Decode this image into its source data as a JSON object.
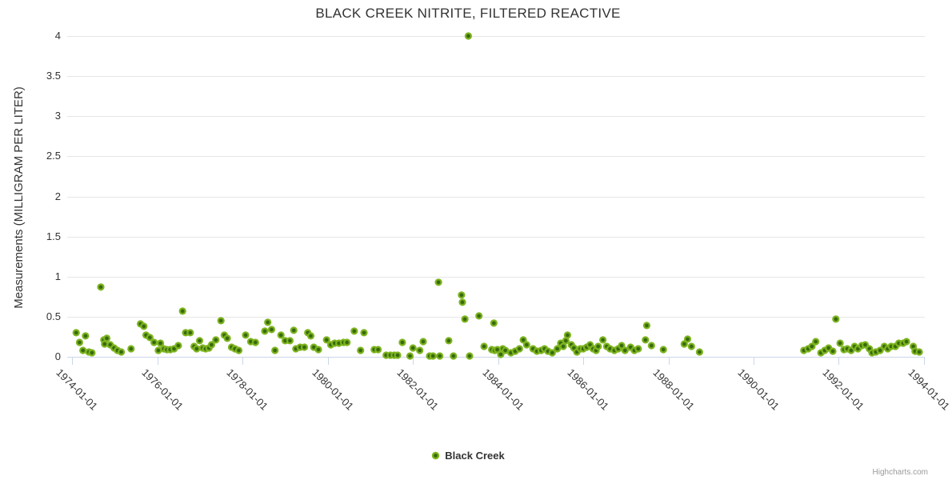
{
  "title": "BLACK CREEK NITRITE, FILTERED REACTIVE",
  "credits": "Highcharts.com",
  "legend": {
    "items": [
      {
        "label": "Black Creek"
      }
    ]
  },
  "colors": {
    "marker_outer": "#7db41e",
    "marker_center": "#37690f",
    "grid": "#e6e6e6",
    "axis_line": "#ccd6eb",
    "label": "#333333",
    "credits": "#999999"
  },
  "chart_data": {
    "type": "scatter",
    "title": "BLACK CREEK NITRITE, FILTERED REACTIVE",
    "xlabel": "",
    "ylabel": "Measurements (MILLIGRAM PER LITER)",
    "legend_position": "bottom-center",
    "grid": "horizontal",
    "xlim": [
      1973.88,
      1994.02
    ],
    "ylim": [
      0,
      4
    ],
    "y_ticks": [
      0,
      0.5,
      1,
      1.5,
      2,
      2.5,
      3,
      3.5,
      4
    ],
    "x_tick_years": [
      1974,
      1976,
      1978,
      1980,
      1982,
      1984,
      1986,
      1988,
      1990,
      1992,
      1994
    ],
    "x_tick_labels": [
      "1974-01-01",
      "1976-01-01",
      "1978-01-01",
      "1980-01-01",
      "1982-01-01",
      "1984-01-01",
      "1986-01-01",
      "1988-01-01",
      "1990-01-01",
      "1992-01-01",
      "1994-01-01"
    ],
    "series": [
      {
        "name": "Black Creek",
        "points": [
          [
            1974.09,
            0.3
          ],
          [
            1974.17,
            0.18
          ],
          [
            1974.25,
            0.08
          ],
          [
            1974.31,
            0.26
          ],
          [
            1974.39,
            0.06
          ],
          [
            1974.46,
            0.05
          ],
          [
            1974.67,
            0.87
          ],
          [
            1974.74,
            0.21
          ],
          [
            1974.76,
            0.16
          ],
          [
            1974.81,
            0.23
          ],
          [
            1974.89,
            0.15
          ],
          [
            1974.98,
            0.11
          ],
          [
            1975.06,
            0.08
          ],
          [
            1975.15,
            0.06
          ],
          [
            1975.38,
            0.1
          ],
          [
            1975.6,
            0.41
          ],
          [
            1975.68,
            0.38
          ],
          [
            1975.73,
            0.27
          ],
          [
            1975.82,
            0.24
          ],
          [
            1975.92,
            0.18
          ],
          [
            1976.02,
            0.08
          ],
          [
            1976.07,
            0.17
          ],
          [
            1976.15,
            0.1
          ],
          [
            1976.22,
            0.09
          ],
          [
            1976.3,
            0.09
          ],
          [
            1976.39,
            0.1
          ],
          [
            1976.49,
            0.14
          ],
          [
            1976.59,
            0.57
          ],
          [
            1976.66,
            0.3
          ],
          [
            1976.77,
            0.3
          ],
          [
            1976.86,
            0.13
          ],
          [
            1976.92,
            0.1
          ],
          [
            1976.99,
            0.2
          ],
          [
            1977.06,
            0.11
          ],
          [
            1977.13,
            0.1
          ],
          [
            1977.21,
            0.11
          ],
          [
            1977.27,
            0.15
          ],
          [
            1977.37,
            0.21
          ],
          [
            1977.49,
            0.45
          ],
          [
            1977.57,
            0.27
          ],
          [
            1977.64,
            0.23
          ],
          [
            1977.74,
            0.12
          ],
          [
            1977.82,
            0.1
          ],
          [
            1977.91,
            0.08
          ],
          [
            1978.07,
            0.27
          ],
          [
            1978.19,
            0.19
          ],
          [
            1978.3,
            0.18
          ],
          [
            1978.52,
            0.32
          ],
          [
            1978.59,
            0.43
          ],
          [
            1978.68,
            0.34
          ],
          [
            1978.76,
            0.08
          ],
          [
            1978.9,
            0.27
          ],
          [
            1979.0,
            0.2
          ],
          [
            1979.11,
            0.2
          ],
          [
            1979.2,
            0.33
          ],
          [
            1979.25,
            0.1
          ],
          [
            1979.35,
            0.12
          ],
          [
            1979.45,
            0.12
          ],
          [
            1979.53,
            0.3
          ],
          [
            1979.6,
            0.26
          ],
          [
            1979.67,
            0.12
          ],
          [
            1979.78,
            0.09
          ],
          [
            1979.97,
            0.21
          ],
          [
            1980.07,
            0.15
          ],
          [
            1980.16,
            0.17
          ],
          [
            1980.26,
            0.17
          ],
          [
            1980.37,
            0.18
          ],
          [
            1980.45,
            0.18
          ],
          [
            1980.62,
            0.32
          ],
          [
            1980.77,
            0.08
          ],
          [
            1980.85,
            0.3
          ],
          [
            1981.09,
            0.09
          ],
          [
            1981.18,
            0.09
          ],
          [
            1981.37,
            0.02
          ],
          [
            1981.47,
            0.02
          ],
          [
            1981.56,
            0.02
          ],
          [
            1981.64,
            0.02
          ],
          [
            1981.75,
            0.18
          ],
          [
            1981.93,
            0.01
          ],
          [
            1982.0,
            0.11
          ],
          [
            1982.16,
            0.08
          ],
          [
            1982.24,
            0.19
          ],
          [
            1982.39,
            0.01
          ],
          [
            1982.47,
            0.01
          ],
          [
            1982.6,
            0.93
          ],
          [
            1982.63,
            0.01
          ],
          [
            1982.84,
            0.2
          ],
          [
            1982.95,
            0.01
          ],
          [
            1983.14,
            0.77
          ],
          [
            1983.16,
            0.68
          ],
          [
            1983.22,
            0.47
          ],
          [
            1983.3,
            4.0
          ],
          [
            1983.33,
            0.01
          ],
          [
            1983.55,
            0.51
          ],
          [
            1983.67,
            0.13
          ],
          [
            1983.85,
            0.09
          ],
          [
            1983.9,
            0.42
          ],
          [
            1983.92,
            0.08
          ],
          [
            1983.98,
            0.09
          ],
          [
            1984.06,
            0.03
          ],
          [
            1984.11,
            0.1
          ],
          [
            1984.17,
            0.08
          ],
          [
            1984.3,
            0.05
          ],
          [
            1984.4,
            0.07
          ],
          [
            1984.5,
            0.1
          ],
          [
            1984.59,
            0.21
          ],
          [
            1984.67,
            0.15
          ],
          [
            1984.82,
            0.1
          ],
          [
            1984.91,
            0.07
          ],
          [
            1985.01,
            0.08
          ],
          [
            1985.09,
            0.1
          ],
          [
            1985.17,
            0.07
          ],
          [
            1985.27,
            0.05
          ],
          [
            1985.39,
            0.1
          ],
          [
            1985.47,
            0.17
          ],
          [
            1985.53,
            0.13
          ],
          [
            1985.59,
            0.2
          ],
          [
            1985.63,
            0.27
          ],
          [
            1985.72,
            0.15
          ],
          [
            1985.78,
            0.11
          ],
          [
            1985.85,
            0.06
          ],
          [
            1985.93,
            0.1
          ],
          [
            1986.0,
            0.1
          ],
          [
            1986.08,
            0.12
          ],
          [
            1986.16,
            0.15
          ],
          [
            1986.23,
            0.1
          ],
          [
            1986.3,
            0.08
          ],
          [
            1986.35,
            0.13
          ],
          [
            1986.46,
            0.21
          ],
          [
            1986.55,
            0.13
          ],
          [
            1986.63,
            0.1
          ],
          [
            1986.73,
            0.08
          ],
          [
            1986.82,
            0.1
          ],
          [
            1986.9,
            0.14
          ],
          [
            1986.98,
            0.08
          ],
          [
            1987.11,
            0.12
          ],
          [
            1987.2,
            0.08
          ],
          [
            1987.29,
            0.1
          ],
          [
            1987.46,
            0.21
          ],
          [
            1987.49,
            0.39
          ],
          [
            1987.6,
            0.14
          ],
          [
            1987.88,
            0.09
          ],
          [
            1988.37,
            0.16
          ],
          [
            1988.45,
            0.22
          ],
          [
            1988.54,
            0.13
          ],
          [
            1988.73,
            0.06
          ],
          [
            1991.18,
            0.08
          ],
          [
            1991.28,
            0.1
          ],
          [
            1991.37,
            0.13
          ],
          [
            1991.46,
            0.19
          ],
          [
            1991.58,
            0.05
          ],
          [
            1991.67,
            0.08
          ],
          [
            1991.76,
            0.11
          ],
          [
            1991.86,
            0.07
          ],
          [
            1991.93,
            0.47
          ],
          [
            1992.03,
            0.17
          ],
          [
            1992.12,
            0.09
          ],
          [
            1992.2,
            0.1
          ],
          [
            1992.29,
            0.08
          ],
          [
            1992.37,
            0.13
          ],
          [
            1992.45,
            0.1
          ],
          [
            1992.54,
            0.14
          ],
          [
            1992.62,
            0.15
          ],
          [
            1992.72,
            0.1
          ],
          [
            1992.78,
            0.05
          ],
          [
            1992.87,
            0.06
          ],
          [
            1992.97,
            0.08
          ],
          [
            1993.07,
            0.13
          ],
          [
            1993.15,
            0.1
          ],
          [
            1993.23,
            0.13
          ],
          [
            1993.33,
            0.13
          ],
          [
            1993.41,
            0.17
          ],
          [
            1993.51,
            0.17
          ],
          [
            1993.59,
            0.19
          ],
          [
            1993.75,
            0.13
          ],
          [
            1993.79,
            0.07
          ],
          [
            1993.89,
            0.06
          ]
        ]
      }
    ]
  }
}
